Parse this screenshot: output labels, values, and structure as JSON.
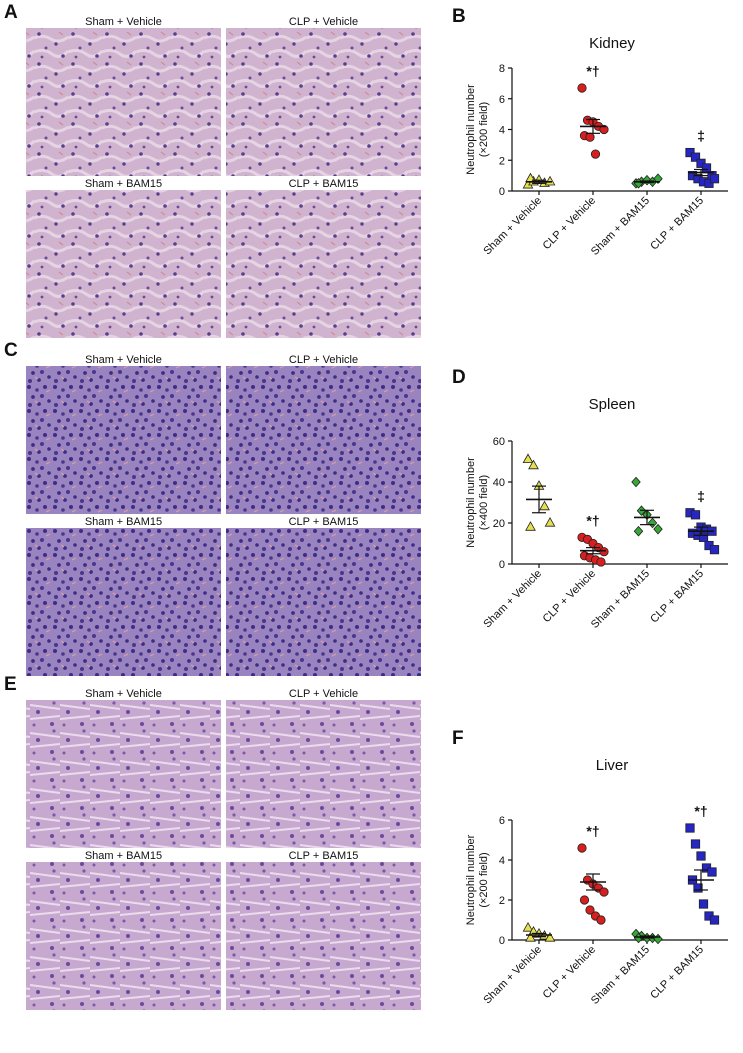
{
  "figure_panels": [
    {
      "label": "A",
      "images": [
        "Sham + Vehicle",
        "CLP + Vehicle",
        "Sham + BAM15",
        "CLP + BAM15"
      ]
    },
    {
      "label": "C",
      "images": [
        "Sham + Vehicle",
        "CLP + Vehicle",
        "Sham + BAM15",
        "CLP + BAM15"
      ]
    },
    {
      "label": "E",
      "images": [
        "Sham + Vehicle",
        "CLP + Vehicle",
        "Sham + BAM15",
        "CLP + BAM15"
      ]
    }
  ],
  "chart_data": [
    {
      "type": "dot",
      "panel_label": "B",
      "title": "Kidney",
      "ylabel": [
        "Neutrophil number",
        "(×200 field)"
      ],
      "categories": [
        "Sham + Vehicle",
        "CLP + Vehicle",
        "Sham + BAM15",
        "CLP + BAM15"
      ],
      "colors": [
        "#e6df4e",
        "#d81e1e",
        "#35a835",
        "#2626c4"
      ],
      "markers": [
        "triangle",
        "circle",
        "diamond",
        "square"
      ],
      "points": [
        [
          0.4,
          0.6,
          0.7,
          0.5,
          0.6,
          0.8
        ],
        [
          6.7,
          4.6,
          4.5,
          4.2,
          4.0,
          3.6,
          3.5,
          2.4
        ],
        [
          0.5,
          0.6,
          0.7,
          0.6,
          0.8,
          0.5
        ],
        [
          2.5,
          2.2,
          1.8,
          1.5,
          1.0,
          1.0,
          0.8,
          0.6,
          0.5,
          0.8
        ]
      ],
      "means": [
        0.6,
        4.2,
        0.6,
        1.2
      ],
      "sems": [
        0.1,
        0.45,
        0.05,
        0.2
      ],
      "annotations": [
        null,
        "*†",
        null,
        "‡"
      ],
      "ylim": [
        0,
        8
      ],
      "yticks": [
        0,
        2,
        4,
        6,
        8
      ]
    },
    {
      "type": "dot",
      "panel_label": "D",
      "title": "Spleen",
      "ylabel": [
        "Neutrophil number",
        "(×400 field)"
      ],
      "categories": [
        "Sham + Vehicle",
        "CLP + Vehicle",
        "Sham + BAM15",
        "CLP + BAM15"
      ],
      "colors": [
        "#e6df4e",
        "#d81e1e",
        "#35a835",
        "#2626c4"
      ],
      "markers": [
        "triangle",
        "circle",
        "diamond",
        "square"
      ],
      "points": [
        [
          51,
          48,
          38,
          28,
          20,
          18
        ],
        [
          13,
          12,
          10,
          8,
          6,
          4,
          3,
          2,
          1
        ],
        [
          40,
          26,
          24,
          20,
          17,
          16
        ],
        [
          25,
          24,
          18,
          17,
          16,
          15,
          14,
          13,
          9,
          7
        ]
      ],
      "means": [
        31.5,
        6.5,
        22.7,
        16
      ],
      "sems": [
        6.5,
        1.5,
        3.5,
        2
      ],
      "annotations": [
        null,
        "*†",
        null,
        "‡"
      ],
      "ylim": [
        0,
        60
      ],
      "yticks": [
        0,
        20,
        40,
        60
      ]
    },
    {
      "type": "dot",
      "panel_label": "F",
      "title": "Liver",
      "ylabel": [
        "Neutrophil number",
        "(×200 field)"
      ],
      "categories": [
        "Sham + Vehicle",
        "CLP + Vehicle",
        "Sham + BAM15",
        "CLP + BAM15"
      ],
      "colors": [
        "#e6df4e",
        "#d81e1e",
        "#35a835",
        "#2626c4"
      ],
      "markers": [
        "triangle",
        "circle",
        "diamond",
        "square"
      ],
      "points": [
        [
          0.6,
          0.4,
          0.3,
          0.2,
          0.1,
          0.1
        ],
        [
          4.6,
          3.0,
          2.8,
          2.6,
          2.4,
          2.0,
          1.5,
          1.2,
          1.0
        ],
        [
          0.3,
          0.2,
          0.1,
          0.1,
          0.05,
          0.1
        ],
        [
          5.6,
          4.8,
          4.2,
          3.6,
          3.4,
          3.0,
          2.6,
          1.8,
          1.2,
          1.0
        ]
      ],
      "means": [
        0.25,
        2.9,
        0.15,
        3.0
      ],
      "sems": [
        0.08,
        0.4,
        0.05,
        0.5
      ],
      "annotations": [
        null,
        "*†",
        null,
        "*†"
      ],
      "ylim": [
        0,
        6
      ],
      "yticks": [
        0,
        2,
        4,
        6
      ]
    }
  ]
}
